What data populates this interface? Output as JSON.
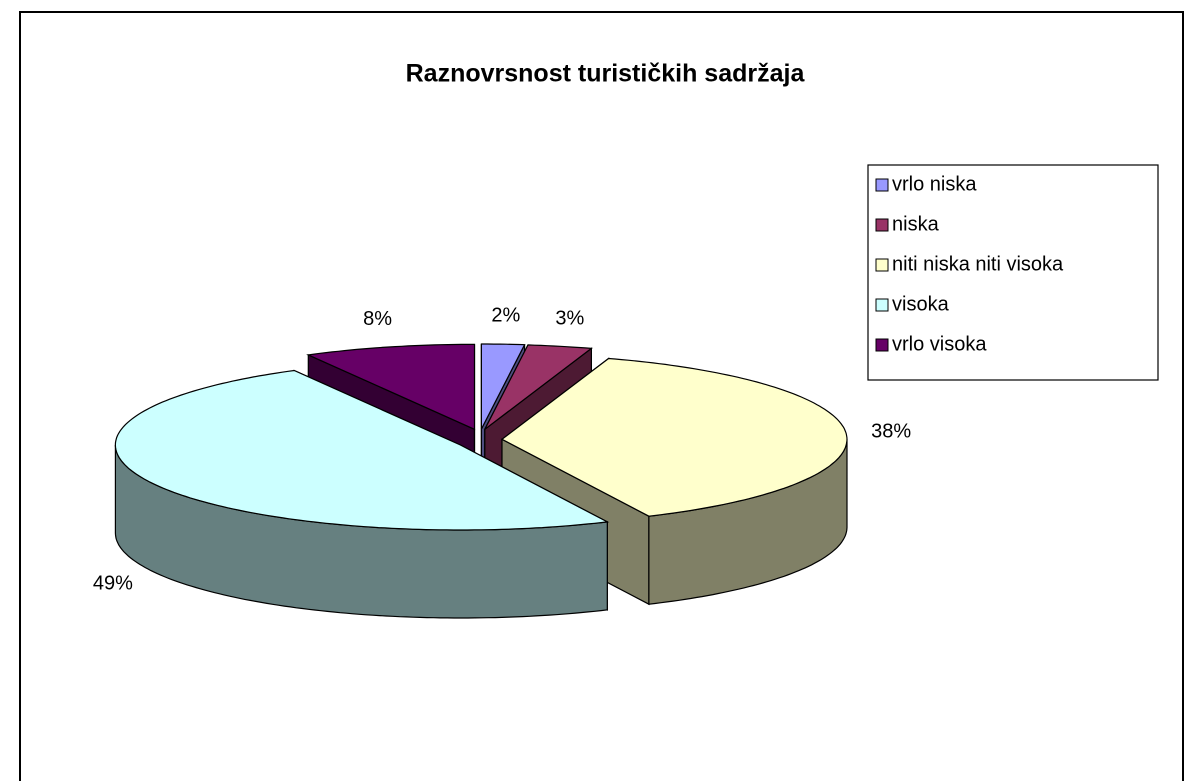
{
  "chart_data": {
    "type": "pie",
    "title": "Raznovrsnost turističkih sadržaja",
    "categories": [
      "vrlo niska",
      "niska",
      "niti niska niti visoka",
      "visoka",
      "vrlo visoka"
    ],
    "values": [
      2,
      3,
      38,
      49,
      8
    ],
    "value_labels": [
      "2%",
      "3%",
      "38%",
      "49%",
      "8%"
    ],
    "colors": [
      "#9999ff",
      "#993366",
      "#ffffcc",
      "#ccffff",
      "#660066"
    ],
    "legend": "right",
    "three_d": true,
    "exploded": true
  }
}
